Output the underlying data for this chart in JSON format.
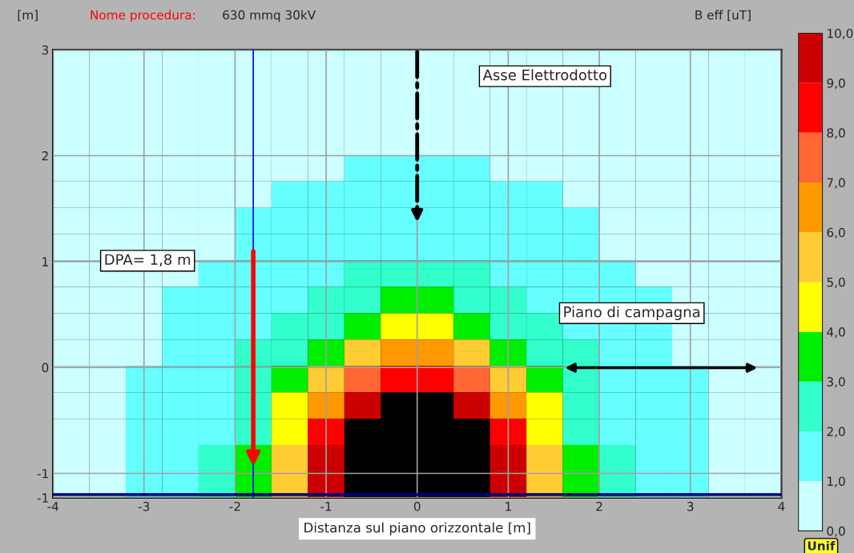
{
  "chart_data": {
    "type": "heatmap",
    "title": "630 mmq 30kV",
    "subtitle": "Nome procedura:",
    "ylabel": "[m]",
    "xlabel": "Distanza sul piano orizzontale [m]",
    "clabel": "B eff [uT]",
    "cells": [
      [
        0.5,
        0.5,
        0.5,
        0.5,
        0.5,
        0.5,
        0.5,
        0.5,
        0.5,
        0.5,
        0.5,
        0.5,
        0.5,
        0.5,
        0.5,
        0.5,
        0.5,
        0.5,
        0.5,
        0.5
      ],
      [
        0.5,
        0.5,
        0.5,
        0.5,
        0.5,
        0.5,
        0.5,
        0.5,
        0.5,
        0.5,
        0.5,
        0.5,
        0.5,
        0.5,
        0.5,
        0.5,
        0.5,
        0.5,
        0.5,
        0.5
      ],
      [
        0.5,
        0.5,
        0.5,
        0.5,
        0.5,
        0.5,
        0.5,
        0.5,
        0.5,
        0.5,
        0.5,
        0.5,
        0.5,
        0.5,
        0.5,
        0.5,
        0.5,
        0.5,
        0.5,
        0.5
      ],
      [
        0.5,
        0.5,
        0.5,
        0.5,
        0.5,
        0.5,
        0.5,
        0.5,
        0.5,
        0.5,
        0.5,
        0.5,
        0.5,
        0.5,
        0.5,
        0.5,
        0.5,
        0.5,
        0.5,
        0.5
      ],
      [
        0.5,
        0.5,
        0.5,
        0.5,
        0.5,
        0.5,
        0.5,
        0.5,
        1.5,
        1.5,
        1.5,
        1.5,
        0.5,
        0.5,
        0.5,
        0.5,
        0.5,
        0.5,
        0.5,
        0.5
      ],
      [
        0.5,
        0.5,
        0.5,
        0.5,
        0.5,
        0.5,
        1.5,
        1.5,
        1.5,
        1.5,
        1.5,
        1.5,
        1.5,
        1.5,
        0.5,
        0.5,
        0.5,
        0.5,
        0.5,
        0.5
      ],
      [
        0.5,
        0.5,
        0.5,
        0.5,
        0.5,
        1.5,
        1.5,
        1.5,
        1.5,
        1.5,
        1.5,
        1.5,
        1.5,
        1.5,
        1.5,
        0.5,
        0.5,
        0.5,
        0.5,
        0.5
      ],
      [
        0.5,
        0.5,
        0.5,
        0.5,
        0.5,
        1.5,
        1.5,
        1.5,
        1.5,
        1.5,
        1.5,
        1.5,
        1.5,
        1.5,
        1.5,
        0.5,
        0.5,
        0.5,
        0.5,
        0.5
      ],
      [
        0.5,
        0.5,
        0.5,
        0.5,
        1.5,
        1.5,
        1.5,
        1.5,
        2.5,
        2.5,
        2.5,
        2.5,
        1.5,
        1.5,
        1.5,
        1.5,
        0.5,
        0.5,
        0.5,
        0.5
      ],
      [
        0.5,
        0.5,
        0.5,
        1.5,
        1.5,
        1.5,
        1.5,
        2.5,
        2.5,
        3.5,
        3.5,
        2.5,
        2.5,
        1.5,
        1.5,
        1.5,
        1.5,
        0.5,
        0.5,
        0.5
      ],
      [
        0.5,
        0.5,
        0.5,
        1.5,
        1.5,
        1.5,
        2.5,
        2.5,
        3.5,
        4.5,
        4.5,
        3.5,
        2.5,
        2.5,
        1.5,
        1.5,
        1.5,
        0.5,
        0.5,
        0.5
      ],
      [
        0.5,
        0.5,
        0.5,
        1.5,
        1.5,
        2.5,
        2.5,
        3.5,
        5.5,
        6.5,
        6.5,
        5.5,
        3.5,
        2.5,
        2.5,
        1.5,
        1.5,
        0.5,
        0.5,
        0.5
      ],
      [
        0.5,
        0.5,
        1.5,
        1.5,
        1.5,
        2.5,
        3.5,
        5.5,
        7.5,
        8.5,
        8.5,
        7.5,
        5.5,
        3.5,
        2.5,
        1.5,
        1.5,
        1.5,
        0.5,
        0.5
      ],
      [
        0.5,
        0.5,
        1.5,
        1.5,
        1.5,
        2.5,
        4.5,
        6.5,
        9.5,
        null,
        null,
        9.5,
        6.5,
        4.5,
        2.5,
        1.5,
        1.5,
        1.5,
        0.5,
        0.5
      ],
      [
        0.5,
        0.5,
        1.5,
        1.5,
        1.5,
        2.5,
        4.5,
        8.5,
        null,
        null,
        null,
        null,
        8.5,
        4.5,
        2.5,
        1.5,
        1.5,
        1.5,
        0.5,
        0.5
      ],
      [
        0.5,
        0.5,
        1.5,
        1.5,
        2.5,
        3.5,
        5.5,
        9.5,
        null,
        null,
        null,
        null,
        9.5,
        5.5,
        3.5,
        2.5,
        1.5,
        1.5,
        0.5,
        0.5
      ],
      [
        0.5,
        0.5,
        1.5,
        1.5,
        2.5,
        3.5,
        5.5,
        9.5,
        null,
        null,
        null,
        null,
        9.5,
        5.5,
        3.5,
        2.5,
        1.5,
        1.5,
        0.5,
        0.5
      ]
    ],
    "colors": [
      "#ccffff",
      "#66ffff",
      "#33ffcc",
      "#00ee00",
      "#ffff00",
      "#ffcc33",
      "#ff9900",
      "#ff6633",
      "#ff0000",
      "#cc0000"
    ],
    "clim": [
      0,
      10
    ],
    "cticks": [
      {
        "value": 0,
        "label": "0,0"
      },
      {
        "value": 1,
        "label": "1,0"
      },
      {
        "value": 2,
        "label": "2,0"
      },
      {
        "value": 3,
        "label": "3,0"
      },
      {
        "value": 4,
        "label": "4,0"
      },
      {
        "value": 5,
        "label": "5,0"
      },
      {
        "value": 6,
        "label": "6,0"
      },
      {
        "value": 7,
        "label": "7,0"
      },
      {
        "value": 8,
        "label": "8,0"
      },
      {
        "value": 9,
        "label": "9,0"
      },
      {
        "value": 10,
        "label": "10,0"
      }
    ],
    "xlim": [
      -4,
      4
    ],
    "xticks": [
      -4,
      -3,
      -2,
      -1,
      0,
      1,
      2,
      3,
      4
    ],
    "ylim": [
      -1.23,
      3
    ],
    "yticks": [
      {
        "value": -1.23,
        "label": "-1"
      },
      -1,
      0,
      1,
      2,
      3
    ],
    "grid": true,
    "ref_lines": [
      {
        "axis": "x",
        "value": -1.8,
        "color": "#0000ff"
      },
      {
        "axis": "y",
        "value": -1.2,
        "color": "#000080"
      }
    ],
    "annotations": [
      "Asse Elettrodotto",
      "DPA= 1,8 m",
      "Piano di campagna",
      "Unif"
    ]
  }
}
